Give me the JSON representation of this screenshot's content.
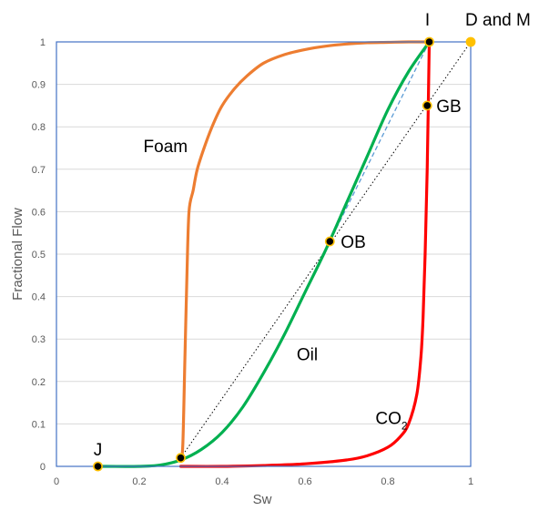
{
  "chart_data": {
    "type": "line",
    "xlabel": "Sw",
    "ylabel": "Fractional Flow",
    "xlim": [
      0,
      1
    ],
    "ylim": [
      0,
      1
    ],
    "x_ticks": [
      "0",
      "0.2",
      "0.4",
      "0.6",
      "0.8",
      "1"
    ],
    "y_ticks": [
      "0",
      "0.1",
      "0.2",
      "0.3",
      "0.4",
      "0.5",
      "0.6",
      "0.7",
      "0.8",
      "0.9",
      "1"
    ],
    "grid": "horizontal",
    "colors": {
      "foam": "#ED7D31",
      "oil": "#00B050",
      "co2": "#FF0000",
      "frame": "#4472C4",
      "grid": "#D9D9D9",
      "tangent": "#5B9BD5"
    },
    "series": [
      {
        "key": "foam",
        "x": [
          0.3,
          0.305,
          0.31,
          0.315,
          0.32,
          0.33,
          0.34,
          0.36,
          0.38,
          0.4,
          0.43,
          0.46,
          0.5,
          0.55,
          0.6,
          0.65,
          0.7,
          0.75,
          0.8,
          0.85,
          0.9
        ],
        "y": [
          0.02,
          0.05,
          0.25,
          0.45,
          0.6,
          0.65,
          0.7,
          0.76,
          0.81,
          0.85,
          0.89,
          0.92,
          0.95,
          0.97,
          0.982,
          0.99,
          0.995,
          0.998,
          0.999,
          1.0,
          1.0
        ]
      },
      {
        "key": "oil",
        "x": [
          0.1,
          0.2,
          0.25,
          0.3,
          0.35,
          0.4,
          0.45,
          0.5,
          0.55,
          0.6,
          0.65,
          0.7,
          0.75,
          0.8,
          0.85,
          0.9
        ],
        "y": [
          0.0,
          0.0,
          0.003,
          0.015,
          0.04,
          0.08,
          0.14,
          0.22,
          0.31,
          0.41,
          0.51,
          0.62,
          0.73,
          0.84,
          0.93,
          1.0
        ]
      },
      {
        "key": "co2",
        "x": [
          0.3,
          0.4,
          0.5,
          0.6,
          0.7,
          0.75,
          0.8,
          0.83,
          0.85,
          0.87,
          0.88,
          0.885,
          0.89,
          0.895,
          0.9
        ],
        "y": [
          0.0,
          0.0,
          0.002,
          0.006,
          0.015,
          0.025,
          0.045,
          0.07,
          0.1,
          0.17,
          0.26,
          0.35,
          0.5,
          0.7,
          1.0
        ]
      }
    ],
    "reference_lines": [
      {
        "key": "diagonal",
        "x": [
          0.3,
          1.0
        ],
        "y": [
          0.02,
          1.0
        ],
        "style": "dotted"
      },
      {
        "key": "tangent",
        "x": [
          0.66,
          0.9
        ],
        "y": [
          0.53,
          1.0
        ],
        "style": "dashed"
      }
    ],
    "points": [
      {
        "label": "J",
        "x": 0.1,
        "y": 0.0,
        "fill": "#000000"
      },
      {
        "label": "",
        "x": 0.3,
        "y": 0.02,
        "fill": "#000000"
      },
      {
        "label": "OB",
        "x": 0.66,
        "y": 0.53,
        "fill": "#000000"
      },
      {
        "label": "GB",
        "x": 0.895,
        "y": 0.85,
        "fill": "#000000"
      },
      {
        "label": "I",
        "x": 0.9,
        "y": 1.0,
        "fill": "#000000"
      },
      {
        "label": "D and M",
        "x": 1.0,
        "y": 1.0,
        "fill": "#FFC000"
      }
    ],
    "annotations": [
      {
        "text": "Foam",
        "x": 0.21,
        "y": 0.74
      },
      {
        "text": "Oil",
        "x": 0.58,
        "y": 0.25
      },
      {
        "text": "CO",
        "sub": "2",
        "x": 0.77,
        "y": 0.1
      }
    ]
  }
}
